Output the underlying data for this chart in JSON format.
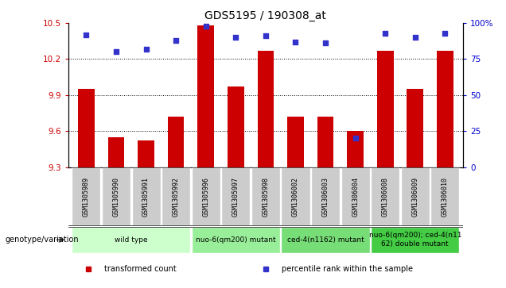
{
  "title": "GDS5195 / 190308_at",
  "samples": [
    "GSM1305989",
    "GSM1305990",
    "GSM1305991",
    "GSM1305992",
    "GSM1305996",
    "GSM1305997",
    "GSM1305998",
    "GSM1306002",
    "GSM1306003",
    "GSM1306004",
    "GSM1306008",
    "GSM1306009",
    "GSM1306010"
  ],
  "bar_values": [
    9.95,
    9.55,
    9.52,
    9.72,
    10.48,
    9.97,
    10.27,
    9.72,
    9.72,
    9.6,
    10.27,
    9.95,
    10.27
  ],
  "percentile_values": [
    92,
    80,
    82,
    88,
    98,
    90,
    91,
    87,
    86,
    20,
    93,
    90,
    93
  ],
  "ylim_left": [
    9.3,
    10.5
  ],
  "ylim_right": [
    0,
    100
  ],
  "yticks_left": [
    9.3,
    9.6,
    9.9,
    10.2,
    10.5
  ],
  "yticks_right": [
    0,
    25,
    50,
    75,
    100
  ],
  "bar_color": "#cc0000",
  "dot_color": "#3333cc",
  "grid_color": "#000000",
  "bg_color": "#ffffff",
  "groups": [
    {
      "label": "wild type",
      "start": 0,
      "end": 3,
      "color": "#ccffcc"
    },
    {
      "label": "nuo-6(qm200) mutant",
      "start": 4,
      "end": 6,
      "color": "#99ee99"
    },
    {
      "label": "ced-4(n1162) mutant",
      "start": 7,
      "end": 9,
      "color": "#77dd77"
    },
    {
      "label": "nuo-6(qm200); ced-4(n11\n62) double mutant",
      "start": 10,
      "end": 12,
      "color": "#44cc44"
    }
  ],
  "genotype_label": "genotype/variation",
  "legend_items": [
    {
      "label": "transformed count",
      "color": "#cc0000"
    },
    {
      "label": "percentile rank within the sample",
      "color": "#3333cc"
    }
  ],
  "left_axis_color": "#cc0000",
  "right_axis_color": "#0000cc",
  "title_fontsize": 10,
  "tick_fontsize": 7.5,
  "bar_width": 0.55,
  "sample_box_color": "#cccccc",
  "sample_box_edge": "#ffffff"
}
